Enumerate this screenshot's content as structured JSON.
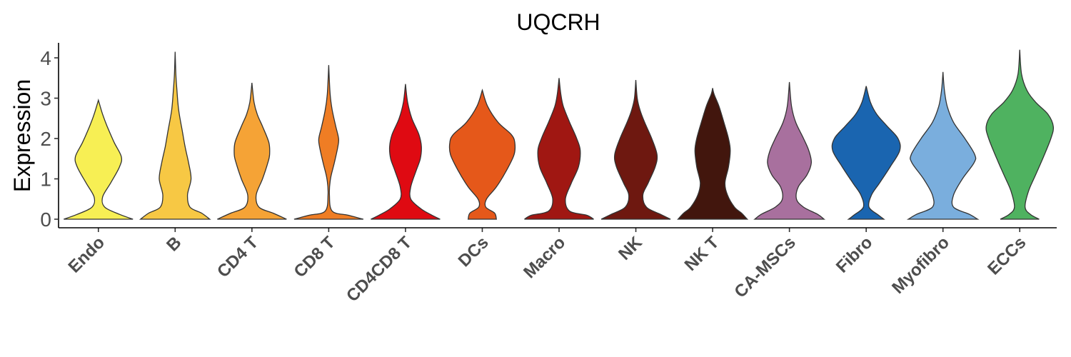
{
  "chart_data": {
    "type": "violin",
    "title": "UQCRH",
    "xlabel": "",
    "ylabel": "Expression",
    "ylim": [
      -0.2,
      4.4
    ],
    "yticks": [
      "0",
      "1",
      "2",
      "3",
      "4"
    ],
    "grid": false,
    "legend": "none",
    "categories": [
      {
        "label": "Endo",
        "color": "#F7EF54",
        "max": 2.95,
        "profile": [
          [
            0,
            0.98
          ],
          [
            0.12,
            0.6
          ],
          [
            0.3,
            0.18
          ],
          [
            0.55,
            0.12
          ],
          [
            0.9,
            0.35
          ],
          [
            1.3,
            0.6
          ],
          [
            1.55,
            0.65
          ],
          [
            1.9,
            0.45
          ],
          [
            2.3,
            0.25
          ],
          [
            2.6,
            0.12
          ],
          [
            2.95,
            0
          ]
        ]
      },
      {
        "label": "B",
        "color": "#F7C844",
        "max": 4.15,
        "profile": [
          [
            0,
            0.98
          ],
          [
            0.15,
            0.75
          ],
          [
            0.3,
            0.42
          ],
          [
            0.6,
            0.35
          ],
          [
            1.0,
            0.45
          ],
          [
            1.4,
            0.38
          ],
          [
            1.8,
            0.28
          ],
          [
            2.2,
            0.2
          ],
          [
            2.7,
            0.1
          ],
          [
            3.2,
            0.05
          ],
          [
            3.6,
            0.02
          ],
          [
            4.15,
            0
          ]
        ]
      },
      {
        "label": "CD4 T",
        "color": "#F5A336",
        "max": 3.38,
        "profile": [
          [
            0,
            0.98
          ],
          [
            0.15,
            0.6
          ],
          [
            0.3,
            0.2
          ],
          [
            0.6,
            0.12
          ],
          [
            1.0,
            0.3
          ],
          [
            1.4,
            0.45
          ],
          [
            1.6,
            0.5
          ],
          [
            1.9,
            0.48
          ],
          [
            2.3,
            0.3
          ],
          [
            2.6,
            0.15
          ],
          [
            2.9,
            0.06
          ],
          [
            3.38,
            0
          ]
        ]
      },
      {
        "label": "CD8 T",
        "color": "#EF7D24",
        "max": 3.82,
        "profile": [
          [
            0,
            0.98
          ],
          [
            0.1,
            0.55
          ],
          [
            0.2,
            0.1
          ],
          [
            0.6,
            0.02
          ],
          [
            1.0,
            0.05
          ],
          [
            1.4,
            0.16
          ],
          [
            1.8,
            0.26
          ],
          [
            2.0,
            0.28
          ],
          [
            2.3,
            0.2
          ],
          [
            2.7,
            0.1
          ],
          [
            3.1,
            0.04
          ],
          [
            3.82,
            0
          ]
        ]
      },
      {
        "label": "CD4CD8 T",
        "color": "#DF0A12",
        "max": 3.35,
        "profile": [
          [
            0,
            0.98
          ],
          [
            0.1,
            0.75
          ],
          [
            0.25,
            0.45
          ],
          [
            0.5,
            0.15
          ],
          [
            0.8,
            0.15
          ],
          [
            1.2,
            0.3
          ],
          [
            1.5,
            0.42
          ],
          [
            1.8,
            0.45
          ],
          [
            2.1,
            0.38
          ],
          [
            2.5,
            0.18
          ],
          [
            2.9,
            0.06
          ],
          [
            3.35,
            0
          ]
        ]
      },
      {
        "label": "DCs",
        "color": "#E5581A",
        "max": 3.2,
        "profile": [
          [
            0,
            0.4
          ],
          [
            0.15,
            0.35
          ],
          [
            0.3,
            0.1
          ],
          [
            0.5,
            0.12
          ],
          [
            0.8,
            0.4
          ],
          [
            1.2,
            0.68
          ],
          [
            1.6,
            0.9
          ],
          [
            1.9,
            0.92
          ],
          [
            2.1,
            0.82
          ],
          [
            2.4,
            0.45
          ],
          [
            2.8,
            0.15
          ],
          [
            3.2,
            0
          ]
        ]
      },
      {
        "label": "Macro",
        "color": "#A01712",
        "max": 3.5,
        "profile": [
          [
            0,
            0.98
          ],
          [
            0.1,
            0.78
          ],
          [
            0.2,
            0.3
          ],
          [
            0.5,
            0.18
          ],
          [
            0.9,
            0.35
          ],
          [
            1.3,
            0.55
          ],
          [
            1.7,
            0.6
          ],
          [
            2.0,
            0.5
          ],
          [
            2.4,
            0.3
          ],
          [
            2.8,
            0.12
          ],
          [
            3.1,
            0.05
          ],
          [
            3.5,
            0
          ]
        ]
      },
      {
        "label": "NK",
        "color": "#6E1810",
        "max": 3.45,
        "profile": [
          [
            0,
            0.98
          ],
          [
            0.12,
            0.7
          ],
          [
            0.3,
            0.3
          ],
          [
            0.6,
            0.2
          ],
          [
            0.9,
            0.35
          ],
          [
            1.3,
            0.55
          ],
          [
            1.6,
            0.6
          ],
          [
            2.0,
            0.45
          ],
          [
            2.4,
            0.25
          ],
          [
            2.7,
            0.12
          ],
          [
            3.0,
            0.04
          ],
          [
            3.45,
            0
          ]
        ]
      },
      {
        "label": "NK T",
        "color": "#42160D",
        "max": 3.25,
        "profile": [
          [
            0,
            0.98
          ],
          [
            0.15,
            0.82
          ],
          [
            0.3,
            0.62
          ],
          [
            0.6,
            0.42
          ],
          [
            0.9,
            0.35
          ],
          [
            1.3,
            0.45
          ],
          [
            1.7,
            0.5
          ],
          [
            2.0,
            0.45
          ],
          [
            2.4,
            0.32
          ],
          [
            2.8,
            0.18
          ],
          [
            3.1,
            0.04
          ],
          [
            3.25,
            0
          ]
        ]
      },
      {
        "label": "CA-MSCs",
        "color": "#A8709E",
        "max": 3.4,
        "profile": [
          [
            0,
            0.98
          ],
          [
            0.12,
            0.8
          ],
          [
            0.3,
            0.4
          ],
          [
            0.5,
            0.2
          ],
          [
            0.8,
            0.25
          ],
          [
            1.1,
            0.5
          ],
          [
            1.4,
            0.62
          ],
          [
            1.7,
            0.55
          ],
          [
            2.0,
            0.4
          ],
          [
            2.4,
            0.18
          ],
          [
            2.8,
            0.06
          ],
          [
            3.4,
            0
          ]
        ]
      },
      {
        "label": "Fibro",
        "color": "#1A65B0",
        "max": 3.3,
        "profile": [
          [
            0,
            0.5
          ],
          [
            0.1,
            0.35
          ],
          [
            0.3,
            0.08
          ],
          [
            0.6,
            0.15
          ],
          [
            0.9,
            0.38
          ],
          [
            1.3,
            0.68
          ],
          [
            1.7,
            0.95
          ],
          [
            2.0,
            0.9
          ],
          [
            2.3,
            0.6
          ],
          [
            2.6,
            0.3
          ],
          [
            2.9,
            0.12
          ],
          [
            3.3,
            0
          ]
        ]
      },
      {
        "label": "Myofibro",
        "color": "#7AAEDD",
        "max": 3.65,
        "profile": [
          [
            0,
            0.98
          ],
          [
            0.12,
            0.75
          ],
          [
            0.3,
            0.3
          ],
          [
            0.6,
            0.3
          ],
          [
            1.0,
            0.55
          ],
          [
            1.4,
            0.88
          ],
          [
            1.6,
            0.9
          ],
          [
            2.0,
            0.62
          ],
          [
            2.4,
            0.3
          ],
          [
            2.8,
            0.12
          ],
          [
            3.2,
            0.04
          ],
          [
            3.65,
            0
          ]
        ]
      },
      {
        "label": "ECCs",
        "color": "#4FB260",
        "max": 4.2,
        "profile": [
          [
            0,
            0.55
          ],
          [
            0.12,
            0.3
          ],
          [
            0.3,
            0.15
          ],
          [
            0.7,
            0.25
          ],
          [
            1.1,
            0.45
          ],
          [
            1.5,
            0.65
          ],
          [
            2.0,
            0.88
          ],
          [
            2.3,
            0.95
          ],
          [
            2.6,
            0.8
          ],
          [
            2.9,
            0.45
          ],
          [
            3.2,
            0.2
          ],
          [
            3.6,
            0.05
          ],
          [
            4.2,
            0
          ]
        ]
      }
    ]
  }
}
